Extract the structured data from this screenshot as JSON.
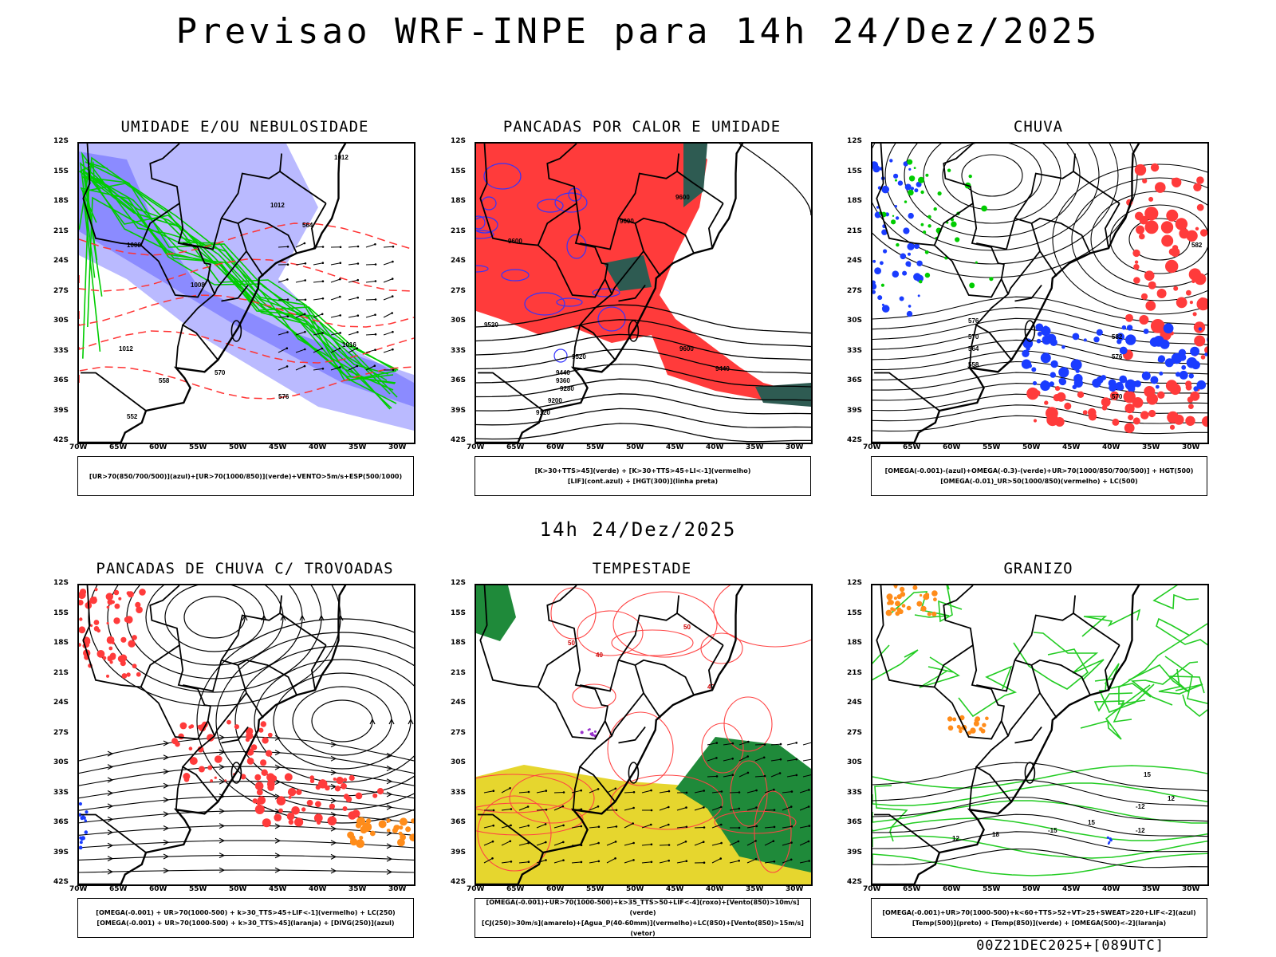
{
  "title": "Previsao WRF-INPE  para 14h 24/Dez/2025",
  "mid_title": "14h 24/Dez/2025",
  "footer": "00Z21DEC2025+[089UTC]",
  "axes": {
    "lat_labels": [
      "12S",
      "15S",
      "18S",
      "21S",
      "24S",
      "27S",
      "30S",
      "33S",
      "36S",
      "39S",
      "42S"
    ],
    "lon_labels": [
      "70W",
      "65W",
      "60W",
      "55W",
      "50W",
      "45W",
      "40W",
      "35W",
      "30W"
    ]
  },
  "panels": [
    {
      "id": "umidade",
      "title": "UMIDADE E/OU NEBULOSIDADE",
      "legend": [
        "[UR>70(850/700/500)](azul)+[UR>70(1000/850)](verde)+VENTO>5m/s+ESP(500/1000)"
      ],
      "fill_colors": [
        "#b3b3ff",
        "#3333ff",
        "#00cc00",
        "#ff3333"
      ],
      "contour_labels": [
        "1012",
        "1012",
        "1008",
        "1008",
        "1012",
        "1016",
        "576",
        "570",
        "564",
        "558",
        "552"
      ]
    },
    {
      "id": "pancadas-calor",
      "title": "PANCADAS POR CALOR E UMIDADE",
      "legend": [
        "[K>30+TTS>45](verde) + [K>30+TTS>45+LI<-1](vermelho)",
        "[LIF](cont.azul) + [HGT(300)](linha preta)"
      ],
      "fill_colors": [
        "#ff3b3b",
        "#2e5b52",
        "#3333ff"
      ],
      "contour_labels": [
        "9600",
        "9600",
        "9600",
        "9520",
        "9440",
        "9360",
        "9280",
        "9200",
        "9120",
        "9520",
        "9440",
        "9600"
      ]
    },
    {
      "id": "chuva",
      "title": "CHUVA",
      "legend": [
        "[OMEGA(-0.001)-(azul)+OMEGA(-0.3)-(verde)+UR>70(1000/850/700/500)] + HGT(500)",
        "[OMEGA(-0.01)_UR>50(1000/850)(vermelho) + LC(500)"
      ],
      "fill_colors": [
        "#ff3b3b",
        "#1a3cff",
        "#00cc00"
      ],
      "contour_labels": [
        "582",
        "576",
        "570",
        "564",
        "558",
        "582",
        "576",
        "570"
      ]
    },
    {
      "id": "pancadas-trovoadas",
      "title": "PANCADAS DE CHUVA C/ TROVOADAS",
      "legend": [
        "[OMEGA(-0.001) + UR>70(1000-500) + k>30_TTS>45+LIF<-1](vermelho) + LC(250)",
        "[OMEGA(-0.001) + UR>70(1000-500) + k>30_TTS>45](laranja) + [DIVG(250)](azul)"
      ],
      "fill_colors": [
        "#ff3b3b",
        "#ff8c1a",
        "#1a3cff"
      ],
      "contour_labels": []
    },
    {
      "id": "tempestade",
      "title": "TEMPESTADE",
      "legend": [
        "[OMEGA(-0.001)+UR>70(1000-500)+k>35_TTS>50+LIF<-4](roxo)+[Vento(850)>10m/s](verde)",
        "[CJ(250)>30m/s](amarelo)+[Agua_P(40-60mm)](vermelho)+LC(850)+[Vento(850)>15m/s](vetor)"
      ],
      "fill_colors": [
        "#e6d62e",
        "#1f8a3a",
        "#ff4444",
        "#9933cc"
      ],
      "contour_labels": [
        "50",
        "40",
        "50",
        "40"
      ]
    },
    {
      "id": "granizo",
      "title": "GRANIZO",
      "legend": [
        "[OMEGA(-0.001)+UR>70(1000-500)+k<60+TTS>52+VT>25+SWEAT>220+LIF<-2](azul)",
        "[Temp(500)](preto) + [Temp(850)](verde) + [OMEGA(500)<-2](laranja)"
      ],
      "fill_colors": [
        "#ff8c1a",
        "#22cc22",
        "#1a3cff"
      ],
      "contour_labels": [
        "15",
        "12",
        "-12",
        "-15",
        "12",
        "15",
        "-12",
        "18"
      ]
    }
  ]
}
